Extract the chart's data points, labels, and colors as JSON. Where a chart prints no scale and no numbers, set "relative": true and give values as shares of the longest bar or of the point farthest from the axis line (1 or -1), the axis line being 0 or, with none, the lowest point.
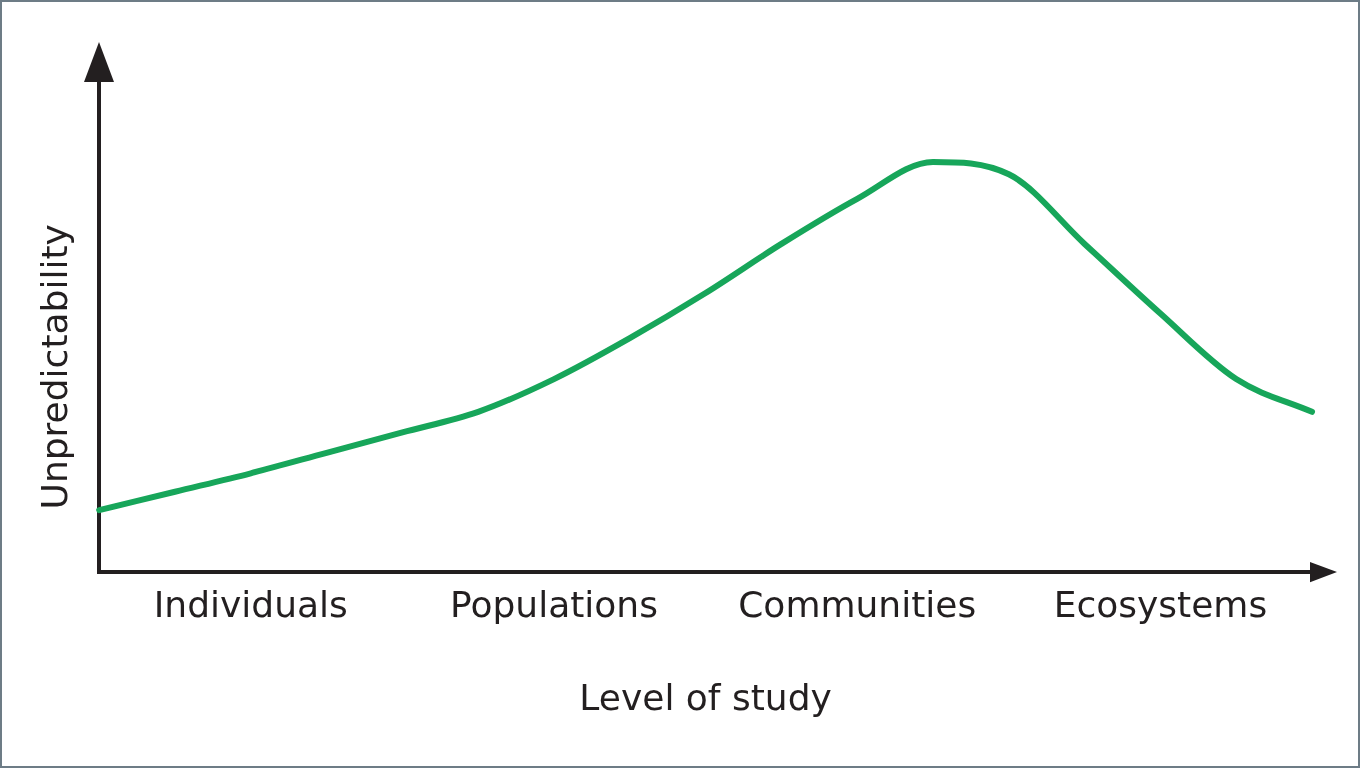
{
  "chart_data": {
    "type": "line",
    "relative": true,
    "xlabel": "Level of study",
    "ylabel": "Unpredictability",
    "categories": [
      null,
      null,
      "Individuals",
      null,
      null,
      null,
      "Populations",
      null,
      null,
      null,
      "Communities",
      null,
      null,
      null,
      "Ecosystems",
      null,
      null
    ],
    "series": [
      {
        "color": "#17a65a",
        "values": [
          0.15,
          0.195,
          0.24,
          0.29,
          0.34,
          0.39,
          0.47,
          0.57,
          0.68,
          0.8,
          0.91,
          1.0,
          0.97,
          0.8,
          0.63,
          0.47,
          0.39
        ]
      }
    ],
    "grid": false,
    "legend": false,
    "marker": "none",
    "line_style": "solid"
  }
}
